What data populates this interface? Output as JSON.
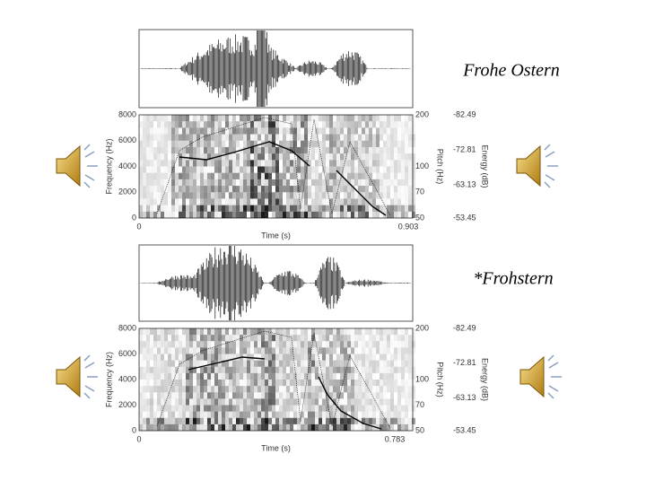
{
  "panels": [
    {
      "title": "Frohe Ostern",
      "frequency_axis": {
        "label": "Frequency (Hz)",
        "ticks": [
          "8000",
          "6000",
          "4000",
          "2000",
          "0"
        ]
      },
      "pitch_axis": {
        "label": "Pitch (Hz)",
        "ticks": [
          "200",
          "100",
          "70",
          "50"
        ]
      },
      "energy_axis": {
        "label": "Energy (dB)",
        "ticks": [
          "-82.49",
          "-72.81",
          "-63.13",
          "-53.45"
        ]
      },
      "time_axis": {
        "label": "Time (s)",
        "ticks": [
          "0",
          "0.903"
        ]
      }
    },
    {
      "title": "*Frohstern",
      "frequency_axis": {
        "label": "Frequency (Hz)",
        "ticks": [
          "8000",
          "6000",
          "4000",
          "2000",
          "0"
        ]
      },
      "pitch_axis": {
        "label": "Pitch (Hz)",
        "ticks": [
          "200",
          "100",
          "70",
          "50"
        ]
      },
      "energy_axis": {
        "label": "Energy (dB)",
        "ticks": [
          "-82.49",
          "-72.81",
          "-63.13",
          "-53.45"
        ]
      },
      "time_axis": {
        "label": "Time (s)",
        "ticks": [
          "0",
          "0.783"
        ]
      }
    }
  ]
}
